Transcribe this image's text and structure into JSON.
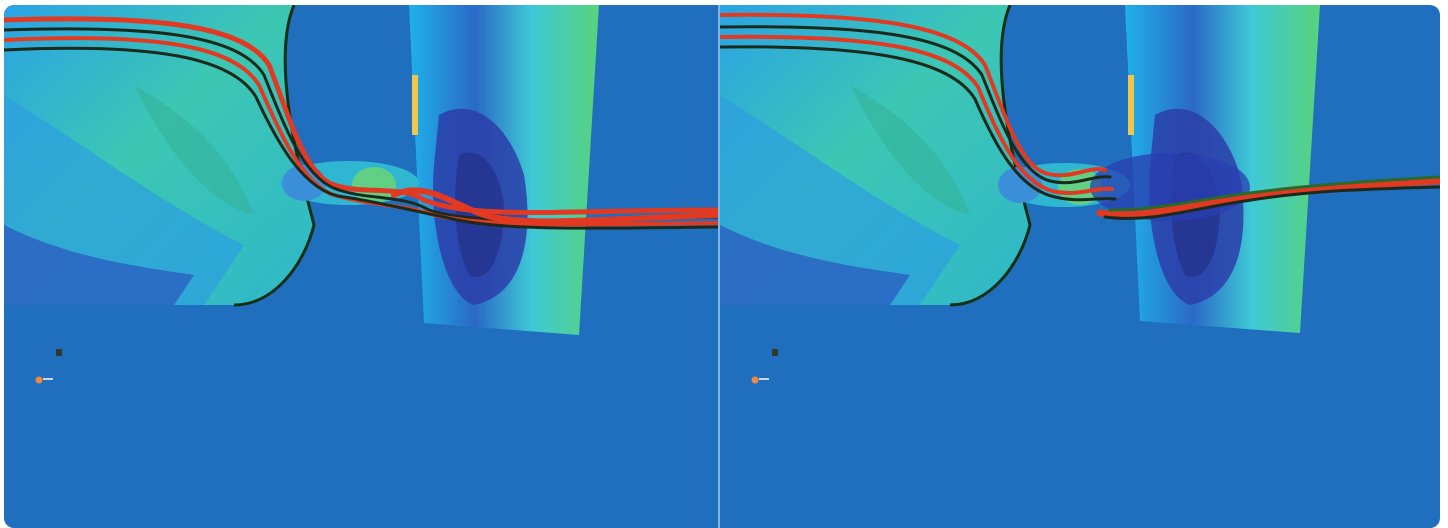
{
  "image": {
    "panels": [
      {
        "id": "left",
        "description_icon": "cfd-streamline-view"
      },
      {
        "id": "right",
        "description_icon": "cfd-streamline-view"
      }
    ],
    "colors": {
      "background": "#1f6fbe",
      "hull_green": "#3fc7a0",
      "hull_cyan": "#33b7e0",
      "pressure_dark": "#2a3fb0",
      "streamline_red": "#e23a22",
      "streamline_black": "#1b2a1a",
      "rudder_green": "#4fd27a"
    }
  }
}
